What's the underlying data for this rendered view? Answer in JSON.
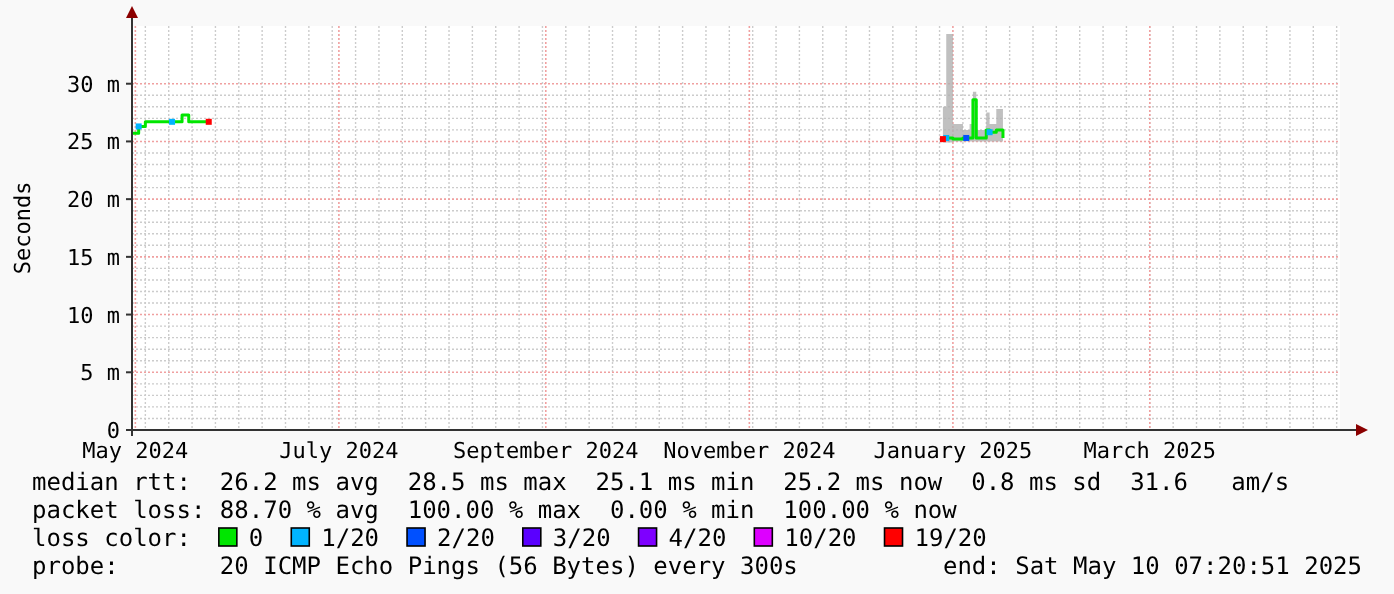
{
  "chart_data": {
    "type": "line",
    "ylabel": "Seconds",
    "xlim": [
      "2024-05-15",
      "2025-05-12"
    ],
    "xticks": [
      {
        "value": "2024-05-16",
        "label": "May 2024"
      },
      {
        "value": "2024-07-16",
        "label": "July 2024"
      },
      {
        "value": "2024-09-16",
        "label": "September 2024"
      },
      {
        "value": "2024-11-16",
        "label": "November 2024"
      },
      {
        "value": "2025-01-16",
        "label": "January 2025"
      },
      {
        "value": "2025-03-16",
        "label": "March 2025"
      }
    ],
    "ylim": [
      0,
      35
    ],
    "yticks": [
      {
        "value": 0,
        "label": "0"
      },
      {
        "value": 5,
        "label": "5 m"
      },
      {
        "value": 10,
        "label": "10 m"
      },
      {
        "value": 15,
        "label": "15 m"
      },
      {
        "value": 20,
        "label": "20 m"
      },
      {
        "value": 25,
        "label": "25 m"
      },
      {
        "value": 30,
        "label": "30 m"
      }
    ],
    "grid": true,
    "legend": "bottom",
    "legend_title": "loss color:",
    "line_style": "solid",
    "series": [
      {
        "name": "0",
        "color": "#00e600",
        "marker": "none",
        "x": [
          "2024-05-15",
          "2024-05-17",
          "2024-05-19",
          "2024-05-29",
          "2024-05-30",
          "2024-06-01",
          "2024-06-07",
          "2024-10-01",
          "2025-01-13",
          "2025-01-14",
          "2025-01-16",
          "2025-01-19",
          "2025-01-21",
          "2025-01-22",
          "2025-01-23",
          "2025-01-26",
          "2025-01-27",
          "2025-01-29",
          "2025-01-31"
        ],
        "values": [
          25.7,
          26.3,
          26.7,
          26.7,
          27.3,
          26.7,
          26.7,
          null,
          25.2,
          25.3,
          25.2,
          25.3,
          25.3,
          28.6,
          25.3,
          26.0,
          25.8,
          26.0,
          25.3
        ],
        "lower": [
          null,
          null,
          null,
          null,
          null,
          null,
          null,
          null,
          24.9,
          24.9,
          25.0,
          25.0,
          25.0,
          25.0,
          25.0,
          25.0,
          25.0,
          25.0,
          25.1
        ],
        "upper": [
          null,
          null,
          null,
          null,
          null,
          null,
          null,
          null,
          28.0,
          34.3,
          26.5,
          26.0,
          26.5,
          29.3,
          26.0,
          27.5,
          26.5,
          27.8,
          26.0
        ]
      },
      {
        "name": "1/20",
        "type": "scatter",
        "color": "#00b4ff",
        "marker": "square",
        "x": [
          "2024-05-17",
          "2024-05-27",
          "2025-01-14",
          "2025-01-27"
        ],
        "values": [
          26.3,
          26.7,
          25.3,
          25.8
        ]
      },
      {
        "name": "2/20",
        "type": "scatter",
        "color": "#0050ff",
        "marker": "square",
        "x": [
          "2025-01-20"
        ],
        "values": [
          25.3
        ]
      },
      {
        "name": "3/20",
        "type": "scatter",
        "color": "#5a00ff",
        "marker": "square"
      },
      {
        "name": "4/20",
        "type": "scatter",
        "color": "#7e00ff",
        "marker": "square"
      },
      {
        "name": "10/20",
        "type": "scatter",
        "color": "#dd00ff",
        "marker": "square"
      },
      {
        "name": "19/20",
        "type": "scatter",
        "color": "#ff0000",
        "marker": "square",
        "x": [
          "2024-06-07",
          "2025-01-13"
        ],
        "values": [
          26.7,
          25.2
        ]
      }
    ],
    "annotations": [
      "median rtt:  26.2 ms avg  28.5 ms max  25.1 ms min  25.2 ms now  0.8 ms sd  31.6   am/s",
      "packet loss: 88.70 % avg  100.00 % max  0.00 % min  100.00 % now",
      "probe:       20 ICMP Echo Pings (56 Bytes) every 300s",
      "end: Sat May 10 07:20:51 2025"
    ]
  }
}
